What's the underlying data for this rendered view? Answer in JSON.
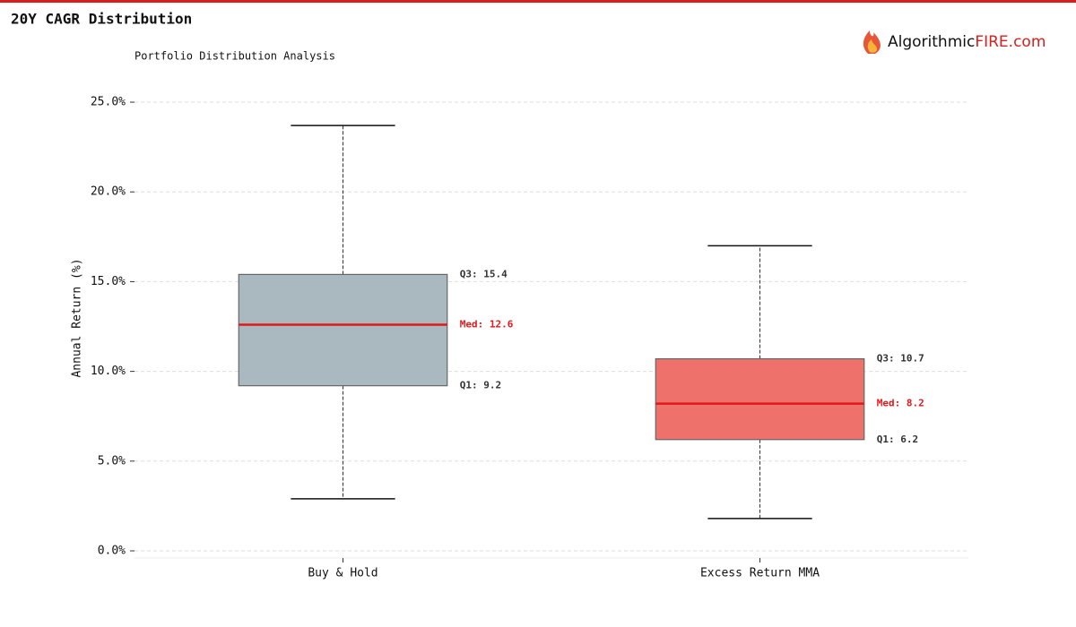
{
  "chart_data": {
    "type": "box",
    "title": "20Y CAGR Distribution",
    "subtitle": "Portfolio Distribution Analysis",
    "brand": {
      "prefix": "Algorithmic",
      "highlight": "FIRE.com"
    },
    "ylabel": "Annual Return (%)",
    "categories": [
      "Buy & Hold",
      "Excess Return MMA"
    ],
    "boxes": [
      {
        "whislo": 2.9,
        "q1": 9.2,
        "med": 12.6,
        "q3": 15.4,
        "whishi": 23.7,
        "color": "#aab8bf",
        "value_labels": {
          "q1": "Q1: 9.2",
          "med": "Med: 12.6",
          "q3": "Q3: 15.4"
        }
      },
      {
        "whislo": 1.8,
        "q1": 6.2,
        "med": 8.2,
        "q3": 10.7,
        "whishi": 17.0,
        "color": "#ee726b",
        "value_labels": {
          "q1": "Q1: 6.2",
          "med": "Med: 8.2",
          "q3": "Q3: 10.7"
        }
      }
    ],
    "median_color": "#e0191b",
    "ylim": [
      -0.4,
      26.3
    ],
    "yticks": [
      {
        "value": 0,
        "label": "0.0%"
      },
      {
        "value": 5,
        "label": "5.0%"
      },
      {
        "value": 10,
        "label": "10.0%"
      },
      {
        "value": 15,
        "label": "15.0%"
      },
      {
        "value": 20,
        "label": "20.0%"
      },
      {
        "value": 25,
        "label": "25.0%"
      }
    ],
    "grid": true
  }
}
